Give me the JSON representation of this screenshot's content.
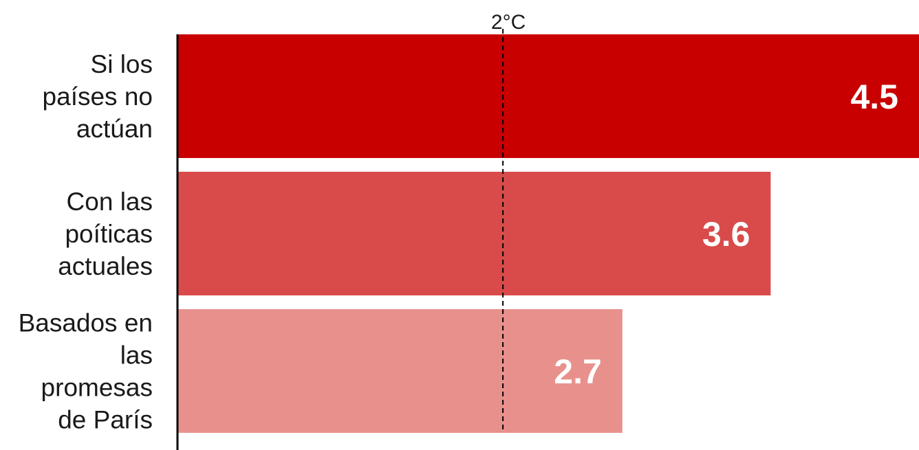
{
  "chart_data": {
    "type": "bar",
    "orientation": "horizontal",
    "categories": [
      [
        "Si los",
        "países no",
        "actúan"
      ],
      [
        "Con las",
        "poíticas",
        "actuales"
      ],
      [
        "Basados en",
        "las",
        "promesas",
        "de París"
      ]
    ],
    "values": [
      4.5,
      3.6,
      2.7
    ],
    "value_labels": [
      "4.5",
      "3.6",
      "2.7"
    ],
    "colors": [
      "#c80000",
      "#d94b4b",
      "#e8918c"
    ],
    "xlim": [
      0,
      4.5
    ],
    "reference_line": {
      "value": 2,
      "label": "2°C"
    },
    "grid": false,
    "legend": "none"
  }
}
